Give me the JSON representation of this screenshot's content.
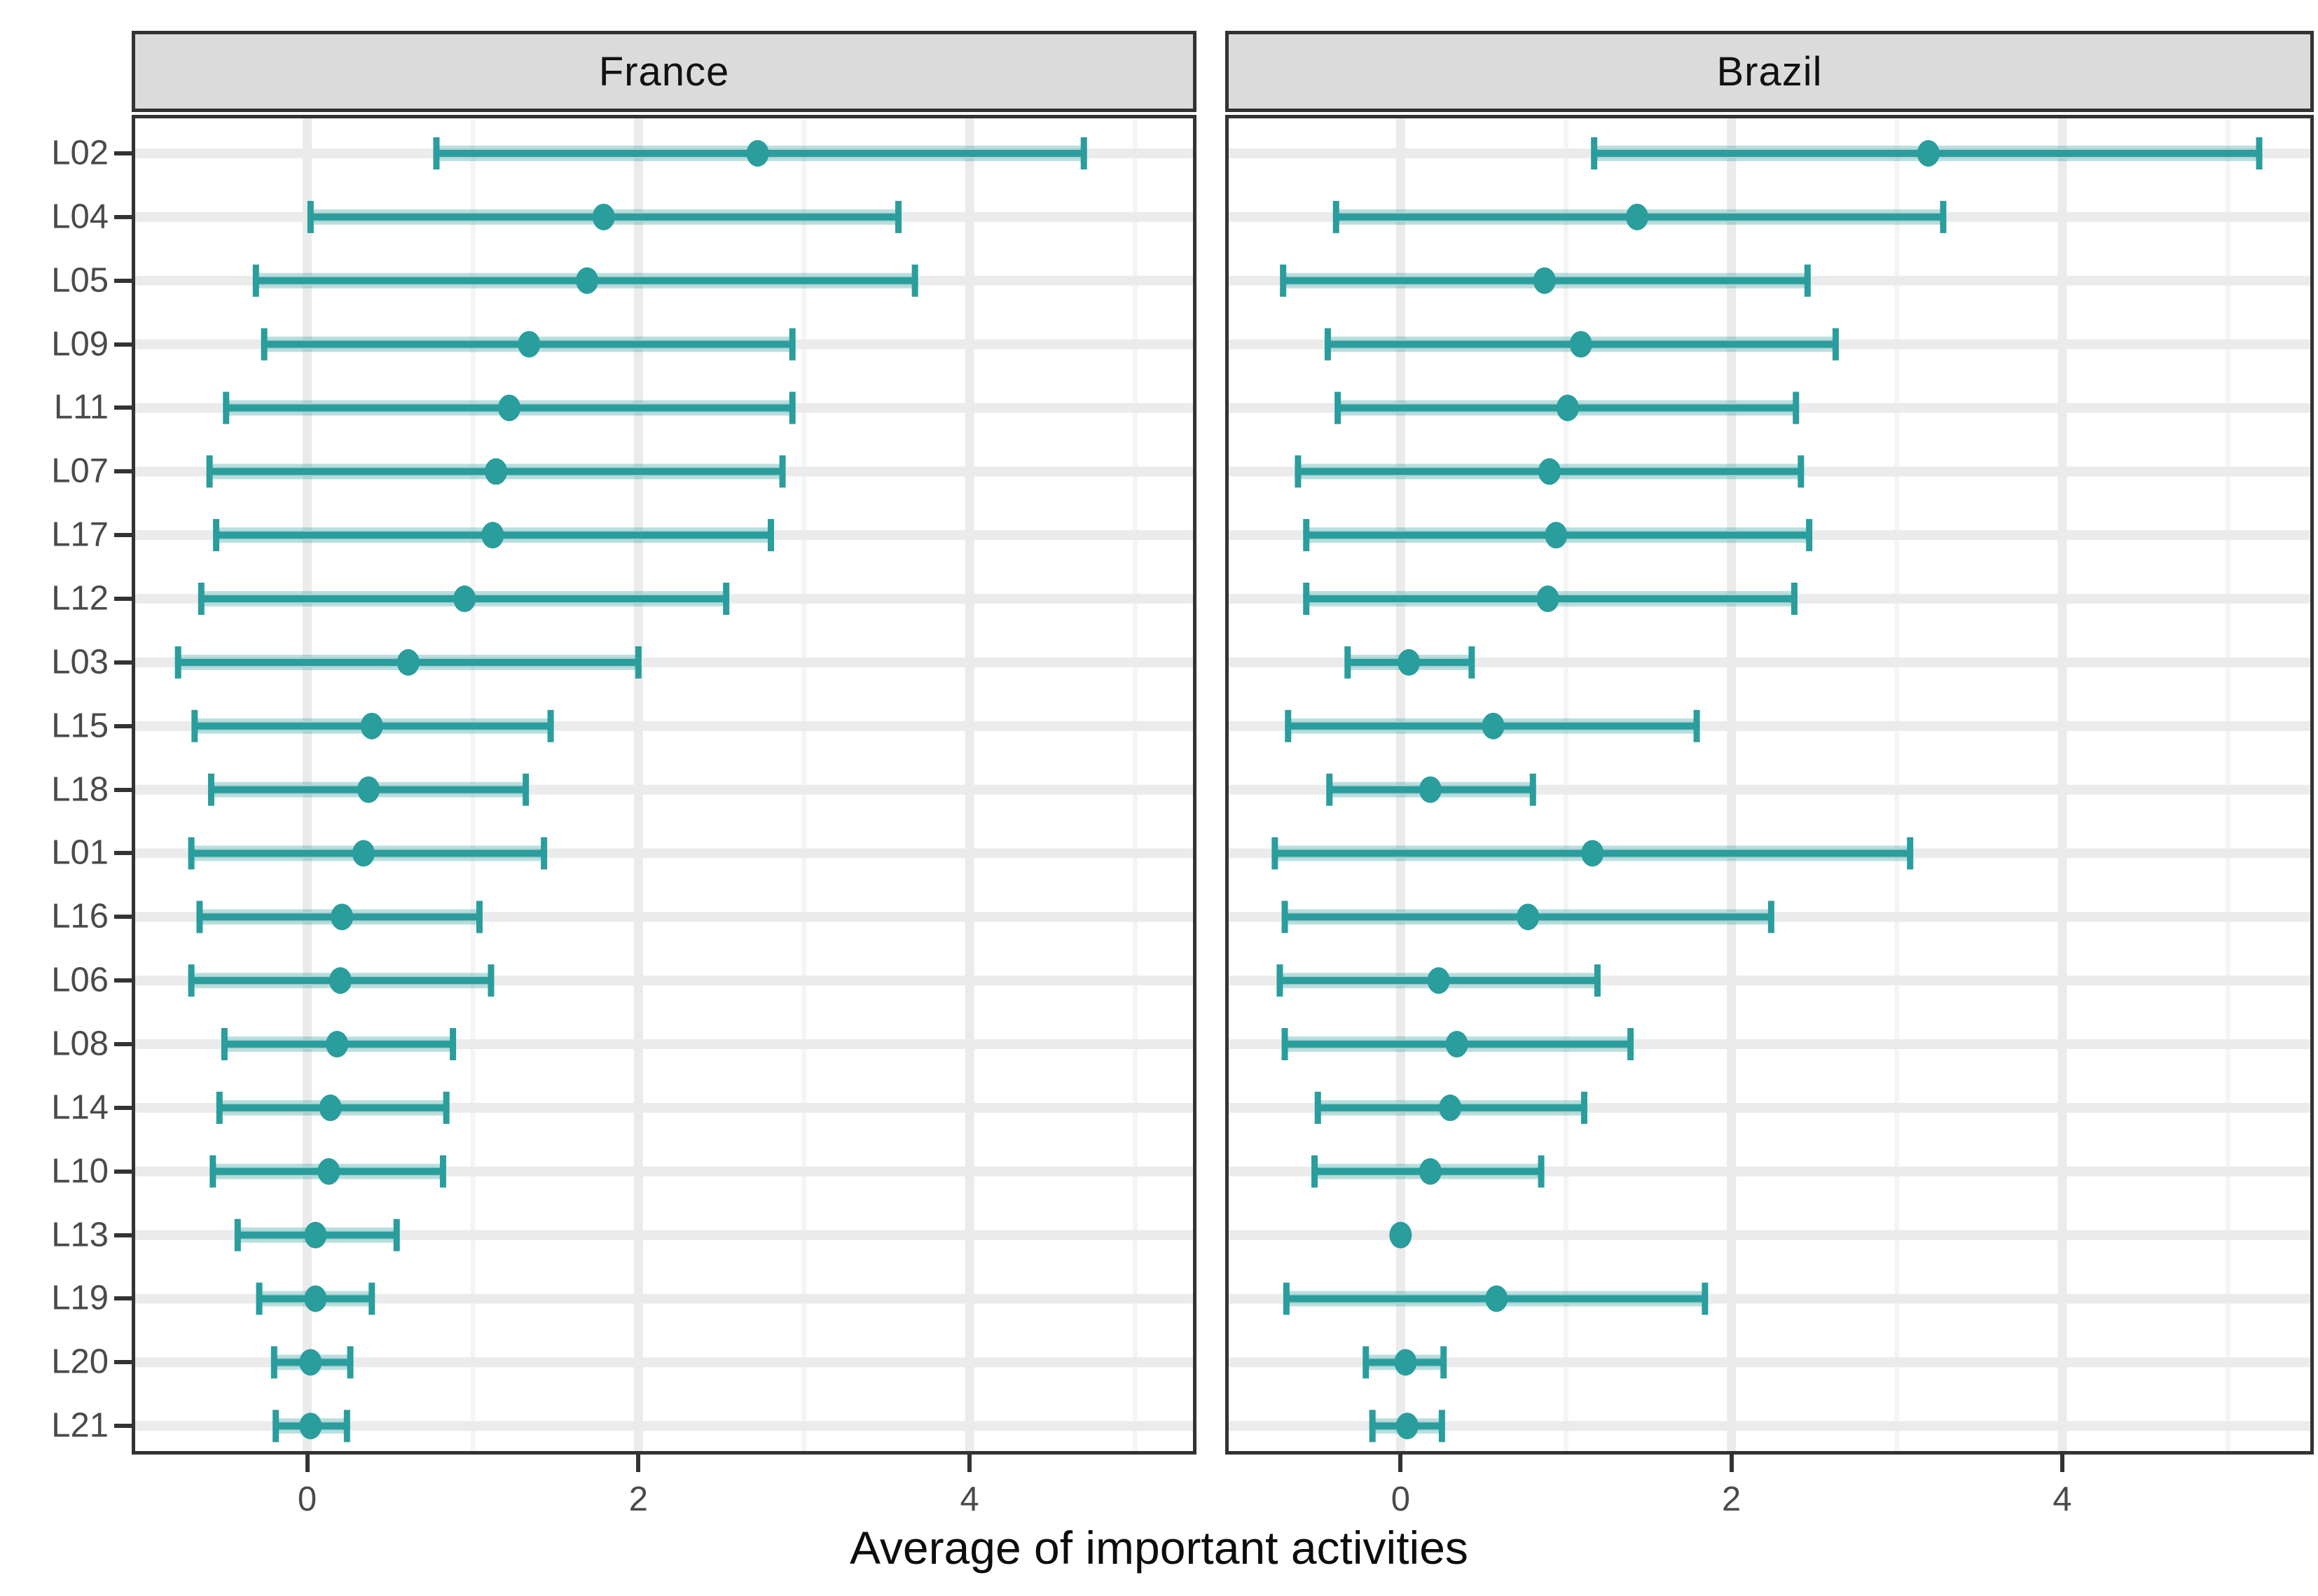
{
  "figure_title": "",
  "chart_data": {
    "type": "scatter",
    "subtype": "pointrange-dotplot-with-error-bars",
    "title": "",
    "xlabel": "Average of important activities",
    "ylabel": "",
    "categories": [
      "L02",
      "L04",
      "L05",
      "L09",
      "L11",
      "L07",
      "L17",
      "L12",
      "L03",
      "L15",
      "L18",
      "L01",
      "L16",
      "L06",
      "L08",
      "L14",
      "L10",
      "L13",
      "L19",
      "L20",
      "L21"
    ],
    "x_major_ticks": [
      0,
      2,
      4
    ],
    "x_minor_ticks": [
      1,
      3,
      5
    ],
    "x_tick_labels": [
      "0",
      "2",
      "4"
    ],
    "xlim": [
      -1.06,
      5.45
    ],
    "grid": "vertical major+minor gridlines; one horizontal major gridline per category; legend none",
    "facets": [
      {
        "name": "France",
        "points": [
          {
            "label": "L02",
            "estimate": 2.72,
            "lower": 0.78,
            "upper": 4.69
          },
          {
            "label": "L04",
            "estimate": 1.79,
            "lower": 0.02,
            "upper": 3.57
          },
          {
            "label": "L05",
            "estimate": 1.69,
            "lower": -0.31,
            "upper": 3.67
          },
          {
            "label": "L09",
            "estimate": 1.34,
            "lower": -0.26,
            "upper": 2.93
          },
          {
            "label": "L11",
            "estimate": 1.22,
            "lower": -0.49,
            "upper": 2.93
          },
          {
            "label": "L07",
            "estimate": 1.14,
            "lower": -0.59,
            "upper": 2.87
          },
          {
            "label": "L17",
            "estimate": 1.12,
            "lower": -0.55,
            "upper": 2.8
          },
          {
            "label": "L12",
            "estimate": 0.95,
            "lower": -0.64,
            "upper": 2.53
          },
          {
            "label": "L03",
            "estimate": 0.61,
            "lower": -0.78,
            "upper": 2.0
          },
          {
            "label": "L15",
            "estimate": 0.39,
            "lower": -0.68,
            "upper": 1.47
          },
          {
            "label": "L18",
            "estimate": 0.37,
            "lower": -0.58,
            "upper": 1.32
          },
          {
            "label": "L01",
            "estimate": 0.34,
            "lower": -0.7,
            "upper": 1.43
          },
          {
            "label": "L16",
            "estimate": 0.21,
            "lower": -0.65,
            "upper": 1.04
          },
          {
            "label": "L06",
            "estimate": 0.2,
            "lower": -0.7,
            "upper": 1.11
          },
          {
            "label": "L08",
            "estimate": 0.18,
            "lower": -0.5,
            "upper": 0.88
          },
          {
            "label": "L14",
            "estimate": 0.14,
            "lower": -0.53,
            "upper": 0.84
          },
          {
            "label": "L10",
            "estimate": 0.13,
            "lower": -0.57,
            "upper": 0.82
          },
          {
            "label": "L13",
            "estimate": 0.05,
            "lower": -0.42,
            "upper": 0.54
          },
          {
            "label": "L19",
            "estimate": 0.05,
            "lower": -0.29,
            "upper": 0.39
          },
          {
            "label": "L20",
            "estimate": 0.02,
            "lower": -0.2,
            "upper": 0.26
          },
          {
            "label": "L21",
            "estimate": 0.02,
            "lower": -0.19,
            "upper": 0.24
          }
        ]
      },
      {
        "name": "Brazil",
        "points": [
          {
            "label": "L02",
            "estimate": 3.19,
            "lower": 1.17,
            "upper": 5.19
          },
          {
            "label": "L04",
            "estimate": 1.43,
            "lower": -0.39,
            "upper": 3.28
          },
          {
            "label": "L05",
            "estimate": 0.87,
            "lower": -0.71,
            "upper": 2.46
          },
          {
            "label": "L09",
            "estimate": 1.09,
            "lower": -0.44,
            "upper": 2.63
          },
          {
            "label": "L11",
            "estimate": 1.01,
            "lower": -0.38,
            "upper": 2.39
          },
          {
            "label": "L07",
            "estimate": 0.9,
            "lower": -0.62,
            "upper": 2.42
          },
          {
            "label": "L17",
            "estimate": 0.94,
            "lower": -0.57,
            "upper": 2.47
          },
          {
            "label": "L12",
            "estimate": 0.89,
            "lower": -0.57,
            "upper": 2.38
          },
          {
            "label": "L03",
            "estimate": 0.05,
            "lower": -0.32,
            "upper": 0.43
          },
          {
            "label": "L15",
            "estimate": 0.56,
            "lower": -0.68,
            "upper": 1.79
          },
          {
            "label": "L18",
            "estimate": 0.18,
            "lower": -0.43,
            "upper": 0.8
          },
          {
            "label": "L01",
            "estimate": 1.16,
            "lower": -0.76,
            "upper": 3.08
          },
          {
            "label": "L16",
            "estimate": 0.77,
            "lower": -0.7,
            "upper": 2.24
          },
          {
            "label": "L06",
            "estimate": 0.23,
            "lower": -0.73,
            "upper": 1.19
          },
          {
            "label": "L08",
            "estimate": 0.34,
            "lower": -0.7,
            "upper": 1.39
          },
          {
            "label": "L14",
            "estimate": 0.3,
            "lower": -0.5,
            "upper": 1.11
          },
          {
            "label": "L10",
            "estimate": 0.18,
            "lower": -0.52,
            "upper": 0.85
          },
          {
            "label": "L13",
            "estimate": 0.0,
            "lower": -0.04,
            "upper": 0.04
          },
          {
            "label": "L19",
            "estimate": 0.58,
            "lower": -0.69,
            "upper": 1.84
          },
          {
            "label": "L20",
            "estimate": 0.03,
            "lower": -0.21,
            "upper": 0.26
          },
          {
            "label": "L21",
            "estimate": 0.04,
            "lower": -0.17,
            "upper": 0.25
          }
        ]
      }
    ],
    "colors": {
      "point_interval": "#2a9d9d",
      "interval_band_opacity": 0.32,
      "strip_background": "#dbdbdb",
      "panel_border": "#333333",
      "panel_background": "#ffffff",
      "grid_major": "#ebebeb",
      "grid_minor": "#f5f5f5",
      "tick_mark": "#333333",
      "tick_label_text": "#4a4a4a",
      "title_text": "#0d0d0d"
    }
  }
}
